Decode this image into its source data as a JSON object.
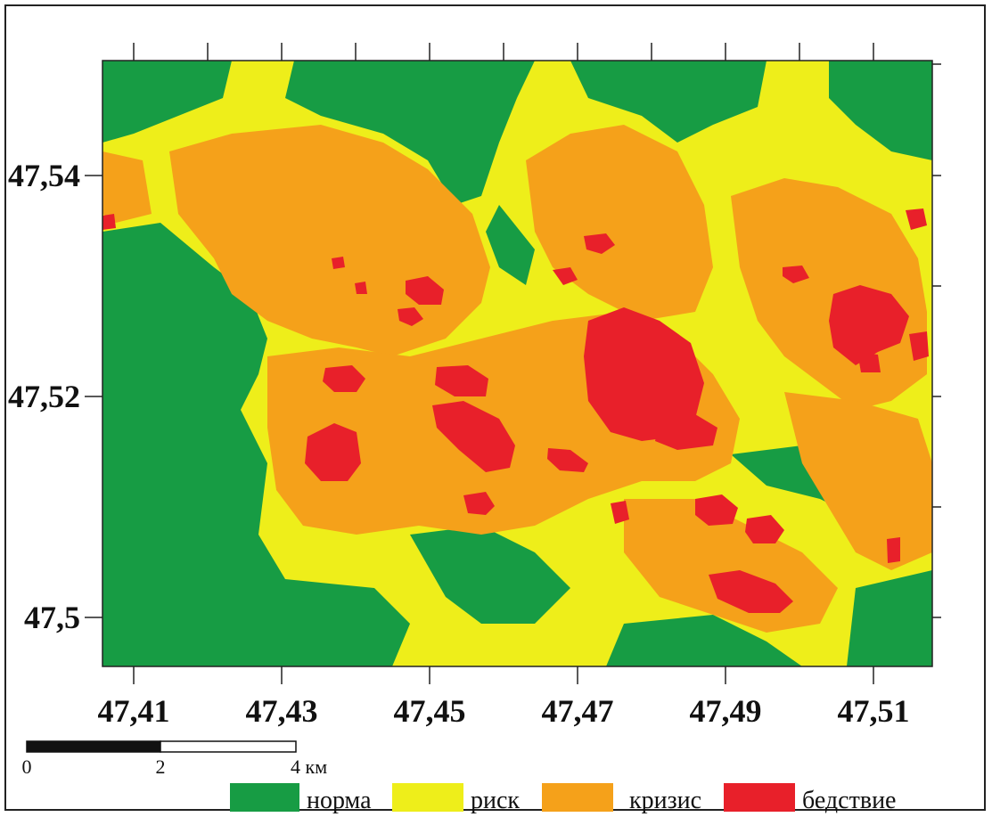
{
  "map": {
    "colors": {
      "norma": "#179c44",
      "risk": "#eeee1a",
      "crisis": "#f5a11a",
      "disaster": "#e8202a"
    },
    "x_ticks": [
      "47,41",
      "47,43",
      "47,45",
      "47,47",
      "47,49",
      "47,51"
    ],
    "y_ticks": [
      "47,54",
      "47,52",
      "47,5"
    ]
  },
  "scale_bar": {
    "labels": [
      "0",
      "2",
      "4 км"
    ]
  },
  "legend": {
    "items": [
      {
        "label": "норма",
        "color": "#179c44"
      },
      {
        "label": "риск",
        "color": "#eeee1a"
      },
      {
        "label": "кризис",
        "color": "#f5a11a"
      },
      {
        "label": "бедствие",
        "color": "#e8202a"
      }
    ]
  }
}
